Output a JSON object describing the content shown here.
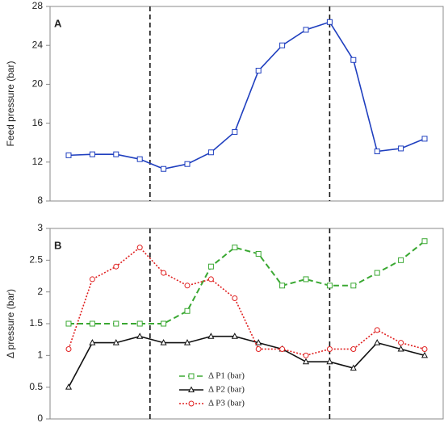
{
  "chart_data": [
    {
      "type": "line",
      "label": "A",
      "y_label": "Feed pressure (bar)",
      "categories": [
        null,
        null,
        null,
        null,
        null,
        null,
        null,
        null,
        null,
        null,
        null,
        null,
        null,
        null,
        null,
        null
      ],
      "series": [
        {
          "color": "#1f3fbf",
          "marker": "square",
          "dash": "solid",
          "values": [
            12.7,
            12.8,
            12.8,
            12.3,
            11.3,
            11.8,
            13.0,
            15.1,
            21.4,
            24.0,
            25.6,
            26.4,
            22.5,
            13.1,
            13.4,
            14.4
          ]
        }
      ],
      "ylim": [
        8,
        28
      ],
      "yticks": [
        8,
        12,
        16,
        20,
        24,
        28
      ],
      "grid": false
    },
    {
      "type": "line",
      "label": "B",
      "y_label": "Δ pressure (bar)",
      "legend": "bottom-center",
      "categories": [
        null,
        null,
        null,
        null,
        null,
        null,
        null,
        null,
        null,
        null,
        null,
        null,
        null,
        null,
        null,
        null
      ],
      "series": [
        {
          "name": "Δ P1 (bar)",
          "color": "#3aa832",
          "marker": "square",
          "dash": "dashed",
          "values": [
            1.5,
            1.5,
            1.5,
            1.5,
            1.5,
            1.7,
            2.4,
            2.7,
            2.6,
            2.1,
            2.2,
            2.1,
            2.1,
            2.3,
            2.5,
            2.8
          ]
        },
        {
          "name": "Δ P2 (bar)",
          "color": "#111111",
          "marker": "triangle",
          "dash": "solid",
          "values": [
            0.5,
            1.2,
            1.2,
            1.3,
            1.2,
            1.2,
            1.3,
            1.3,
            1.2,
            1.1,
            0.9,
            0.9,
            0.8,
            1.2,
            1.1,
            1.0
          ]
        },
        {
          "name": "Δ P3 (bar)",
          "color": "#e02020",
          "marker": "circle",
          "dash": "dotted",
          "values": [
            1.1,
            2.2,
            2.4,
            2.7,
            2.3,
            2.1,
            2.2,
            1.9,
            1.1,
            1.1,
            1.0,
            1.1,
            1.1,
            1.4,
            1.2,
            1.1
          ]
        }
      ],
      "ylim": [
        0,
        3
      ],
      "yticks": [
        0,
        0.5,
        1,
        1.5,
        2,
        2.5,
        3
      ],
      "grid": false
    }
  ]
}
